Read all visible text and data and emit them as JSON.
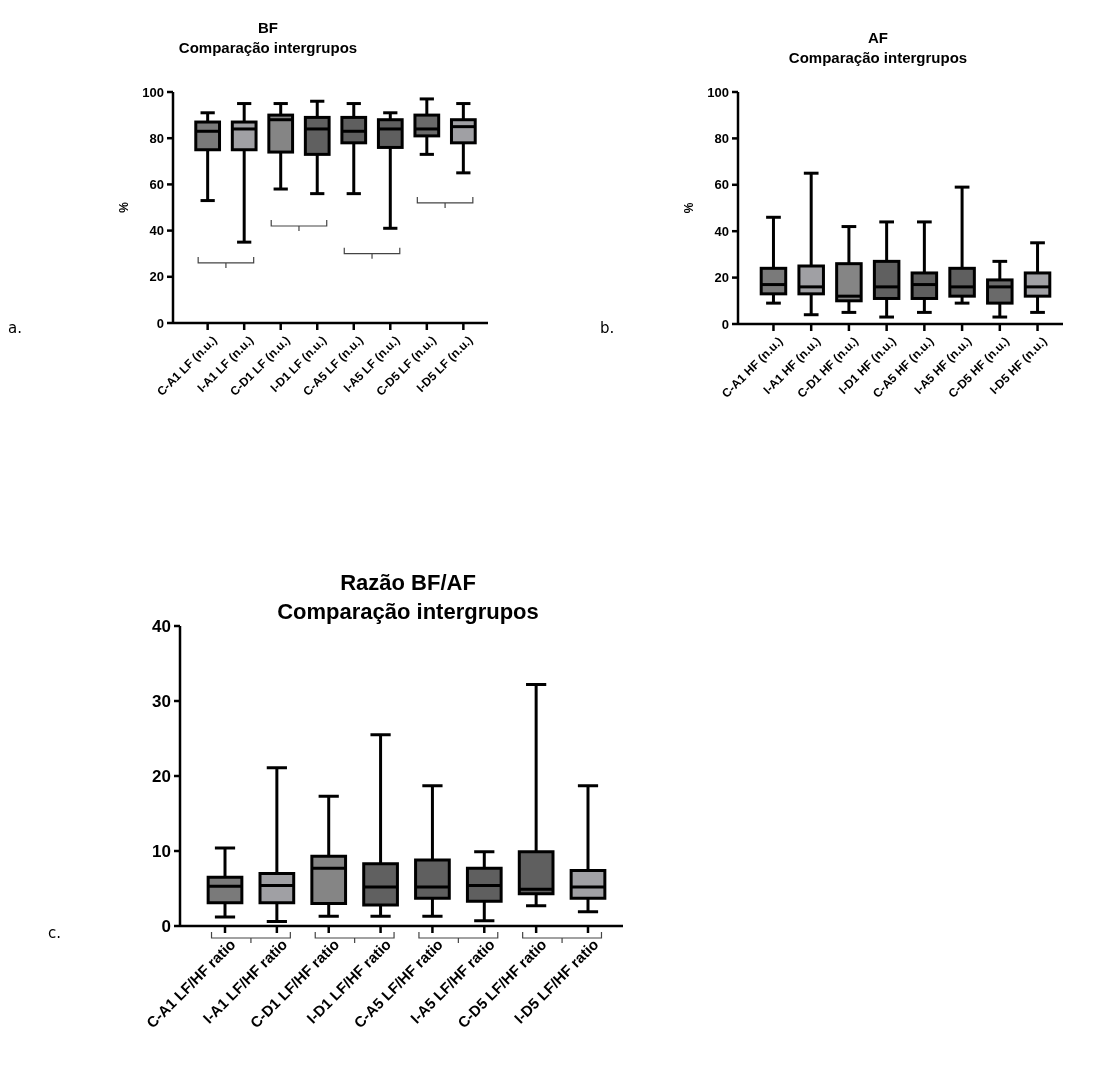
{
  "chart_data": [
    {
      "type": "box",
      "title": "BF",
      "subtitle": "Comparação intergrupos",
      "ylabel": "%",
      "annotations": [
        "a."
      ],
      "categories": [
        "C-A1 LF (n.u.)",
        "I-A1 LF (n.u.)",
        "C-D1 LF (n.u.)",
        "I-D1 LF (n.u.)",
        "C-A5 LF (n.u.)",
        "I-A5 LF (n.u.)",
        "C-D5 LF (n.u.)",
        "I-D5 LF (n.u.)"
      ],
      "ylim": [
        0,
        100
      ],
      "yticks": [
        0,
        20,
        40,
        60,
        80,
        100
      ],
      "colors": [
        "#7a7a7a",
        "#a0a0a4",
        "#858585",
        "#606060",
        "#5f5f5f",
        "#5f5f5f",
        "#6a6a6a",
        "#a0a0a4"
      ],
      "boxes": [
        {
          "low": 53,
          "q1": 75,
          "median": 83,
          "q3": 87,
          "high": 91
        },
        {
          "low": 35,
          "q1": 75,
          "median": 84,
          "q3": 87,
          "high": 95
        },
        {
          "low": 58,
          "q1": 74,
          "median": 88,
          "q3": 90,
          "high": 95
        },
        {
          "low": 56,
          "q1": 73,
          "median": 84,
          "q3": 89,
          "high": 96
        },
        {
          "low": 56,
          "q1": 78,
          "median": 83,
          "q3": 89,
          "high": 95
        },
        {
          "low": 41,
          "q1": 76,
          "median": 84,
          "q3": 88,
          "high": 91
        },
        {
          "low": 73,
          "q1": 81,
          "median": 84,
          "q3": 90,
          "high": 97
        },
        {
          "low": 65,
          "q1": 78,
          "median": 85,
          "q3": 88,
          "high": 95
        }
      ]
    },
    {
      "type": "box",
      "title": "AF",
      "subtitle": "Comparação intergrupos",
      "ylabel": "%",
      "annotations": [
        "b."
      ],
      "categories": [
        "C-A1 HF (n.u.)",
        "I-A1 HF (n.u.)",
        "C-D1 HF (n.u.)",
        "I-D1 HF (n.u.)",
        "C-A5 HF (n.u.)",
        "I-A5 HF (n.u.)",
        "C-D5 HF (n.u.)",
        "I-D5 HF (n.u.)"
      ],
      "ylim": [
        0,
        100
      ],
      "yticks": [
        0,
        20,
        40,
        60,
        80,
        100
      ],
      "colors": [
        "#7a7a7a",
        "#a0a0a4",
        "#858585",
        "#606060",
        "#5f5f5f",
        "#5f5f5f",
        "#6a6a6a",
        "#a0a0a4"
      ],
      "boxes": [
        {
          "low": 9,
          "q1": 13,
          "median": 17,
          "q3": 24,
          "high": 46
        },
        {
          "low": 4,
          "q1": 13,
          "median": 16,
          "q3": 25,
          "high": 65
        },
        {
          "low": 5,
          "q1": 10,
          "median": 12,
          "q3": 26,
          "high": 42
        },
        {
          "low": 3,
          "q1": 11,
          "median": 16,
          "q3": 27,
          "high": 44
        },
        {
          "low": 5,
          "q1": 11,
          "median": 17,
          "q3": 22,
          "high": 44
        },
        {
          "low": 9,
          "q1": 12,
          "median": 16,
          "q3": 24,
          "high": 59
        },
        {
          "low": 3,
          "q1": 9,
          "median": 16,
          "q3": 19,
          "high": 27
        },
        {
          "low": 5,
          "q1": 12,
          "median": 16,
          "q3": 22,
          "high": 35
        }
      ]
    },
    {
      "type": "box",
      "title": "Razão BF/AF",
      "subtitle": "Comparação intergrupos",
      "annotations": [
        "c."
      ],
      "categories": [
        "C-A1 LF/HF ratio",
        "I-A1 LF/HF ratio",
        "C-D1 LF/HF ratio",
        "I-D1 LF/HF ratio",
        "C-A5 LF/HF ratio",
        "I-A5 LF/HF ratio",
        "C-D5 LF/HF ratio",
        "I-D5 LF/HF ratio"
      ],
      "ylim": [
        0,
        40
      ],
      "yticks": [
        0,
        10,
        20,
        30,
        40
      ],
      "colors": [
        "#7a7a7a",
        "#a0a0a4",
        "#858585",
        "#606060",
        "#5f5f5f",
        "#5f5f5f",
        "#5f5f5f",
        "#a0a0a4"
      ],
      "boxes": [
        {
          "low": 1.2,
          "q1": 3.1,
          "median": 5.3,
          "q3": 6.5,
          "high": 10.4
        },
        {
          "low": 0.6,
          "q1": 3.1,
          "median": 5.4,
          "q3": 7,
          "high": 21.1
        },
        {
          "low": 1.3,
          "q1": 3,
          "median": 7.7,
          "q3": 9.3,
          "high": 17.3
        },
        {
          "low": 1.3,
          "q1": 2.8,
          "median": 5.2,
          "q3": 8.3,
          "high": 25.5
        },
        {
          "low": 1.3,
          "q1": 3.7,
          "median": 5.2,
          "q3": 8.8,
          "high": 18.7
        },
        {
          "low": 0.7,
          "q1": 3.3,
          "median": 5.4,
          "q3": 7.7,
          "high": 9.9
        },
        {
          "low": 2.7,
          "q1": 4.3,
          "median": 4.9,
          "q3": 9.9,
          "high": 32.2
        },
        {
          "low": 1.9,
          "q1": 3.7,
          "median": 5.2,
          "q3": 7.4,
          "high": 18.7
        }
      ]
    }
  ]
}
